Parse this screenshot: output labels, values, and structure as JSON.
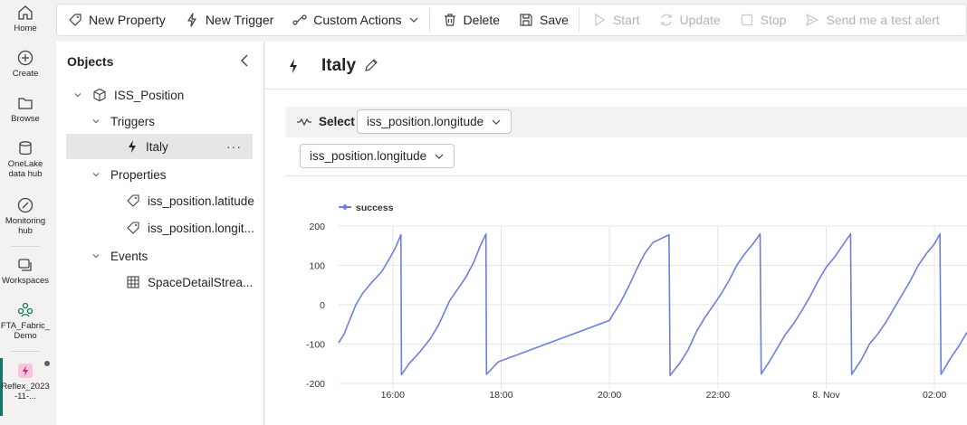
{
  "nav": {
    "items": [
      {
        "label": "Home"
      },
      {
        "label": "Create"
      },
      {
        "label": "Browse"
      },
      {
        "label": "OneLake data hub"
      },
      {
        "label": "Monitoring hub"
      },
      {
        "label": "Workspaces"
      },
      {
        "label": "FTA_Fabric_ Demo"
      },
      {
        "label": "Reflex_2023 -11-..."
      }
    ]
  },
  "toolbar": {
    "new_property": "New Property",
    "new_trigger": "New Trigger",
    "custom_actions": "Custom Actions",
    "delete": "Delete",
    "save": "Save",
    "start": "Start",
    "update": "Update",
    "stop": "Stop",
    "send_test_alert": "Send me a test alert"
  },
  "objects": {
    "title": "Objects",
    "root": "ISS_Position",
    "triggers_label": "Triggers",
    "trigger_item": "Italy",
    "properties_label": "Properties",
    "property_items": [
      "iss_position.latitude",
      "iss_position.longit..."
    ],
    "events_label": "Events",
    "event_items": [
      "SpaceDetailStrea..."
    ]
  },
  "main": {
    "title": "Italy",
    "select_label": "Select",
    "select_value": "iss_position.longitude",
    "field_value": "iss_position.longitude"
  },
  "chart_data": {
    "type": "line",
    "legend": [
      "success"
    ],
    "series_color": "#6b7fe0",
    "x_ticks": [
      "16:00",
      "18:00",
      "20:00",
      "22:00",
      "8. Nov",
      "02:00"
    ],
    "y_ticks": [
      "200",
      "100",
      "0",
      "-100",
      "-200"
    ],
    "ylim": [
      -200,
      200
    ],
    "grid": true,
    "legend_position": "top-left",
    "x_range_hours": [
      15.0,
      26.6
    ],
    "points": [
      [
        15.0,
        -97
      ],
      [
        15.1,
        -75
      ],
      [
        15.2,
        -40
      ],
      [
        15.32,
        0
      ],
      [
        15.45,
        30
      ],
      [
        15.6,
        55
      ],
      [
        15.8,
        85
      ],
      [
        15.95,
        120
      ],
      [
        16.05,
        145
      ],
      [
        16.15,
        178
      ],
      [
        16.16,
        -178
      ],
      [
        16.3,
        -150
      ],
      [
        16.5,
        -120
      ],
      [
        16.7,
        -85
      ],
      [
        16.85,
        -50
      ],
      [
        16.95,
        -20
      ],
      [
        17.05,
        10
      ],
      [
        17.2,
        40
      ],
      [
        17.35,
        70
      ],
      [
        17.5,
        110
      ],
      [
        17.6,
        145
      ],
      [
        17.72,
        180
      ],
      [
        17.73,
        -177
      ],
      [
        17.95,
        -145
      ],
      [
        20.0,
        -40
      ],
      [
        20.05,
        -28
      ],
      [
        20.2,
        5
      ],
      [
        20.35,
        45
      ],
      [
        20.5,
        90
      ],
      [
        20.65,
        130
      ],
      [
        20.8,
        158
      ],
      [
        21.1,
        178
      ],
      [
        21.12,
        -180
      ],
      [
        21.3,
        -148
      ],
      [
        21.45,
        -115
      ],
      [
        21.6,
        -70
      ],
      [
        21.75,
        -35
      ],
      [
        21.9,
        -5
      ],
      [
        22.05,
        25
      ],
      [
        22.2,
        60
      ],
      [
        22.35,
        100
      ],
      [
        22.5,
        130
      ],
      [
        22.65,
        155
      ],
      [
        22.78,
        180
      ],
      [
        22.8,
        -176
      ],
      [
        22.95,
        -145
      ],
      [
        23.1,
        -110
      ],
      [
        23.25,
        -75
      ],
      [
        23.4,
        -48
      ],
      [
        23.55,
        -15
      ],
      [
        23.7,
        20
      ],
      [
        23.85,
        60
      ],
      [
        24.0,
        95
      ],
      [
        24.15,
        120
      ],
      [
        24.3,
        150
      ],
      [
        24.45,
        180
      ],
      [
        24.47,
        -177
      ],
      [
        24.65,
        -140
      ],
      [
        24.8,
        -100
      ],
      [
        24.95,
        -75
      ],
      [
        25.1,
        -45
      ],
      [
        25.25,
        -10
      ],
      [
        25.4,
        25
      ],
      [
        25.55,
        60
      ],
      [
        25.7,
        100
      ],
      [
        25.85,
        130
      ],
      [
        26.0,
        155
      ],
      [
        26.1,
        180
      ],
      [
        26.12,
        -177
      ],
      [
        26.3,
        -135
      ],
      [
        26.45,
        -105
      ],
      [
        26.6,
        -70
      ]
    ]
  }
}
